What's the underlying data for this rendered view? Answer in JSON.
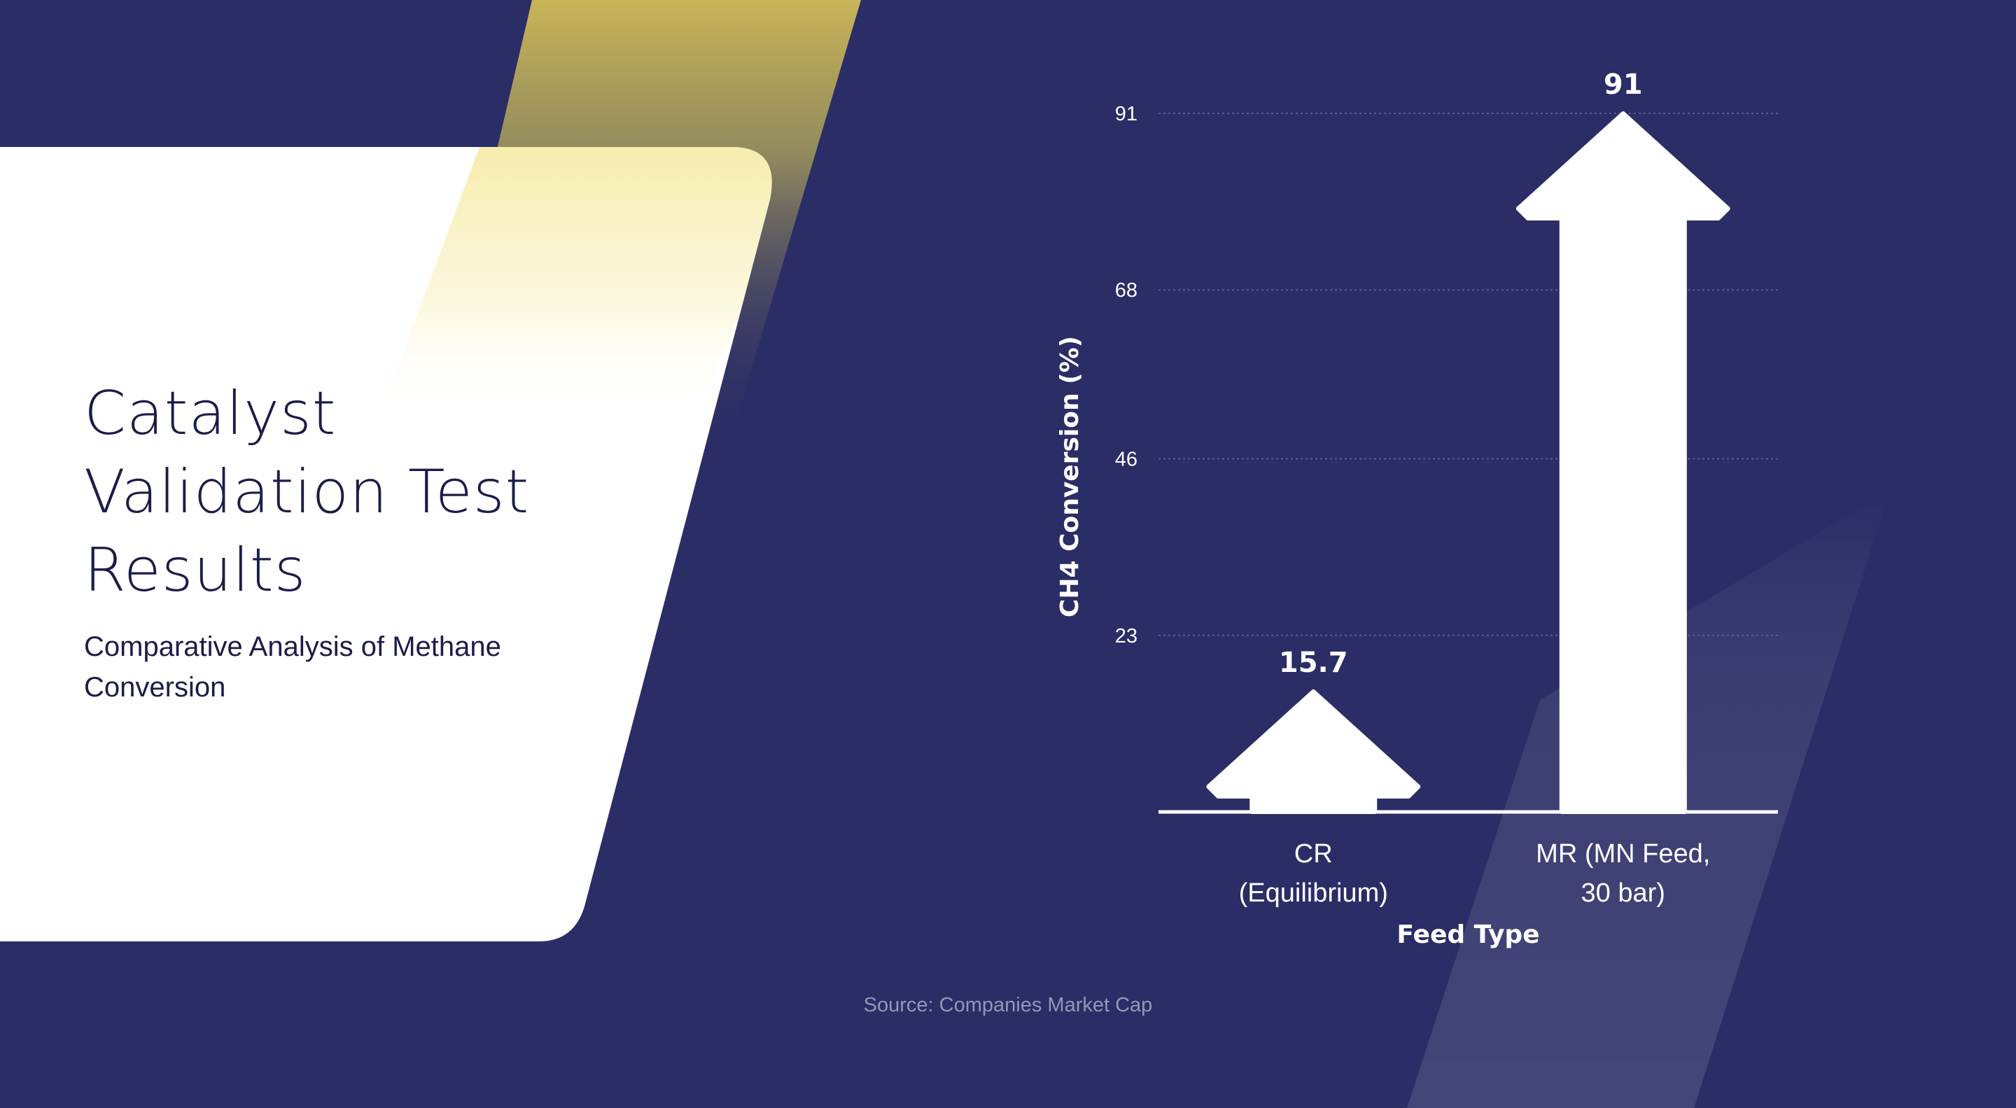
{
  "slide": {
    "title": "Catalyst Validation Test Results",
    "subtitle": "Comparative Analysis of Methane Conversion",
    "source": "Source: Companies Market Cap"
  },
  "colors": {
    "background": "#2b2d66",
    "card": "#ffffff",
    "accent_gold": "#c9b458",
    "accent_light": "#f7eca4",
    "marks": "#ffffff",
    "gridline": "#5a5c93"
  },
  "chart_data": {
    "type": "bar",
    "mark_style": "arrow",
    "title": "",
    "xlabel": "Feed Type",
    "ylabel": "CH4 Conversion (%)",
    "categories": [
      [
        "CR",
        "(Equilibrium)"
      ],
      [
        "MR (MN Feed,",
        "30 bar)"
      ]
    ],
    "values": [
      15.7,
      91
    ],
    "value_labels": [
      "15.7",
      "91"
    ],
    "yticks": [
      23,
      46,
      68,
      91
    ],
    "ylim": [
      0,
      91
    ],
    "grid": true
  }
}
